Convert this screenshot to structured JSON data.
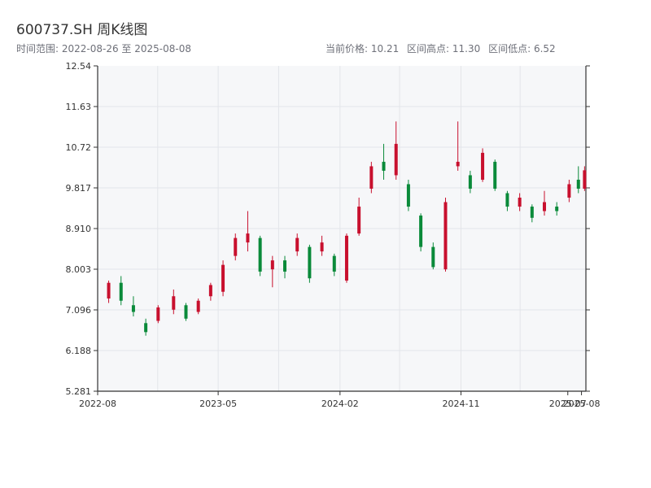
{
  "header": {
    "title": "600737.SH 周K线图",
    "range": "时间范围: 2022-08-26 至 2025-08-08",
    "current_price": "当前价格: 10.21",
    "high": "区间高点: 11.30",
    "low": "区间低点: 6.52"
  },
  "colors": {
    "up": "#c8102e",
    "down": "#0a8a3a",
    "plot_bg": "#f6f7f9",
    "grid": "#e3e5ea",
    "axis": "#333333"
  },
  "chart_data": {
    "type": "candlestick",
    "title": "600737.SH 周K线图",
    "ylim": [
      5.281,
      12.54
    ],
    "y_ticks": [
      "12.54",
      "11.63",
      "10.72",
      "9.817",
      "8.910",
      "8.003",
      "7.096",
      "6.188",
      "5.281"
    ],
    "x_ticks": [
      "2022-08",
      "2023-05",
      "2024-02",
      "2024-11",
      "2025-07",
      "2025-08"
    ],
    "x_range": [
      "2022-08-01",
      "2025-08-11"
    ],
    "grid": true,
    "candles": [
      {
        "date": "2022-08-26",
        "o": 7.35,
        "h": 7.75,
        "l": 7.25,
        "c": 7.7
      },
      {
        "date": "2022-09-23",
        "o": 7.7,
        "h": 7.85,
        "l": 7.2,
        "c": 7.3
      },
      {
        "date": "2022-10-21",
        "o": 7.2,
        "h": 7.4,
        "l": 6.95,
        "c": 7.05
      },
      {
        "date": "2022-11-18",
        "o": 6.8,
        "h": 6.9,
        "l": 6.52,
        "c": 6.6
      },
      {
        "date": "2022-12-16",
        "o": 6.85,
        "h": 7.2,
        "l": 6.8,
        "c": 7.15
      },
      {
        "date": "2023-01-20",
        "o": 7.1,
        "h": 7.55,
        "l": 7.0,
        "c": 7.4
      },
      {
        "date": "2023-02-17",
        "o": 7.2,
        "h": 7.25,
        "l": 6.85,
        "c": 6.9
      },
      {
        "date": "2023-03-17",
        "o": 7.05,
        "h": 7.35,
        "l": 7.0,
        "c": 7.3
      },
      {
        "date": "2023-04-14",
        "o": 7.4,
        "h": 7.7,
        "l": 7.3,
        "c": 7.65
      },
      {
        "date": "2023-05-12",
        "o": 7.5,
        "h": 8.2,
        "l": 7.4,
        "c": 8.1
      },
      {
        "date": "2023-06-09",
        "o": 8.3,
        "h": 8.8,
        "l": 8.2,
        "c": 8.7
      },
      {
        "date": "2023-07-07",
        "o": 8.6,
        "h": 9.3,
        "l": 8.4,
        "c": 8.8
      },
      {
        "date": "2023-08-04",
        "o": 8.7,
        "h": 8.75,
        "l": 7.85,
        "c": 7.95
      },
      {
        "date": "2023-09-01",
        "o": 8.0,
        "h": 8.3,
        "l": 7.6,
        "c": 8.2
      },
      {
        "date": "2023-09-29",
        "o": 8.2,
        "h": 8.3,
        "l": 7.8,
        "c": 7.95
      },
      {
        "date": "2023-10-27",
        "o": 8.4,
        "h": 8.8,
        "l": 8.3,
        "c": 8.7
      },
      {
        "date": "2023-11-24",
        "o": 8.5,
        "h": 8.55,
        "l": 7.7,
        "c": 7.8
      },
      {
        "date": "2023-12-22",
        "o": 8.4,
        "h": 8.75,
        "l": 8.3,
        "c": 8.6
      },
      {
        "date": "2024-01-19",
        "o": 8.3,
        "h": 8.35,
        "l": 7.85,
        "c": 7.95
      },
      {
        "date": "2024-02-16",
        "o": 7.75,
        "h": 8.8,
        "l": 7.7,
        "c": 8.75
      },
      {
        "date": "2024-03-15",
        "o": 8.8,
        "h": 9.6,
        "l": 8.75,
        "c": 9.4
      },
      {
        "date": "2024-04-12",
        "o": 9.8,
        "h": 10.4,
        "l": 9.7,
        "c": 10.3
      },
      {
        "date": "2024-05-10",
        "o": 10.4,
        "h": 10.8,
        "l": 10.0,
        "c": 10.2
      },
      {
        "date": "2024-06-07",
        "o": 10.1,
        "h": 11.3,
        "l": 10.0,
        "c": 10.8
      },
      {
        "date": "2024-07-05",
        "o": 9.9,
        "h": 10.0,
        "l": 9.3,
        "c": 9.4
      },
      {
        "date": "2024-08-02",
        "o": 9.2,
        "h": 9.25,
        "l": 8.4,
        "c": 8.5
      },
      {
        "date": "2024-08-30",
        "o": 8.5,
        "h": 8.6,
        "l": 8.0,
        "c": 8.05
      },
      {
        "date": "2024-09-27",
        "o": 8.0,
        "h": 9.6,
        "l": 7.95,
        "c": 9.5
      },
      {
        "date": "2024-10-25",
        "o": 10.3,
        "h": 11.3,
        "l": 10.2,
        "c": 10.4
      },
      {
        "date": "2024-11-22",
        "o": 10.1,
        "h": 10.2,
        "l": 9.7,
        "c": 9.8
      },
      {
        "date": "2024-12-20",
        "o": 10.0,
        "h": 10.7,
        "l": 9.95,
        "c": 10.6
      },
      {
        "date": "2025-01-17",
        "o": 10.4,
        "h": 10.45,
        "l": 9.75,
        "c": 9.8
      },
      {
        "date": "2025-02-14",
        "o": 9.7,
        "h": 9.75,
        "l": 9.3,
        "c": 9.4
      },
      {
        "date": "2025-03-14",
        "o": 9.4,
        "h": 9.7,
        "l": 9.3,
        "c": 9.6
      },
      {
        "date": "2025-04-11",
        "o": 9.4,
        "h": 9.45,
        "l": 9.05,
        "c": 9.15
      },
      {
        "date": "2025-05-09",
        "o": 9.3,
        "h": 9.75,
        "l": 9.2,
        "c": 9.5
      },
      {
        "date": "2025-06-06",
        "o": 9.4,
        "h": 9.5,
        "l": 9.2,
        "c": 9.3
      },
      {
        "date": "2025-07-04",
        "o": 9.6,
        "h": 10.0,
        "l": 9.5,
        "c": 9.9
      },
      {
        "date": "2025-07-25",
        "o": 10.0,
        "h": 10.3,
        "l": 9.7,
        "c": 9.8
      },
      {
        "date": "2025-08-08",
        "o": 9.8,
        "h": 10.3,
        "l": 9.75,
        "c": 10.21
      }
    ]
  }
}
